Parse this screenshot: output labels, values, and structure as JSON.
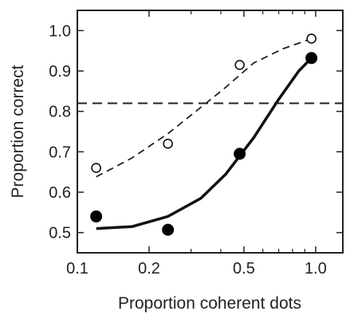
{
  "chart_data": {
    "type": "scatter",
    "title": "",
    "xlabel": "Proportion coherent dots",
    "ylabel": "Proportion correct",
    "xscale": "log",
    "xlim": [
      0.1,
      1.3
    ],
    "ylim": [
      0.45,
      1.05
    ],
    "grid": false,
    "legend": "none",
    "xticks": [
      0.1,
      0.2,
      0.5,
      1.0
    ],
    "xtick_labels": [
      "0.1",
      "0.2",
      "0.5",
      "1.0"
    ],
    "yticks": [
      0.5,
      0.6,
      0.7,
      0.8,
      0.9,
      1.0
    ],
    "ytick_labels": [
      "0.5",
      "0.6",
      "0.7",
      "0.8",
      "0.9",
      "1.0"
    ],
    "series": [
      {
        "style": "open-circles-dashed-fit",
        "x": [
          0.12,
          0.24,
          0.48,
          0.96
        ],
        "y": [
          0.66,
          0.72,
          0.915,
          0.98
        ],
        "fit": [
          [
            0.12,
            0.638
          ],
          [
            0.17,
            0.685
          ],
          [
            0.24,
            0.745
          ],
          [
            0.33,
            0.81
          ],
          [
            0.42,
            0.86
          ],
          [
            0.55,
            0.92
          ],
          [
            0.73,
            0.955
          ],
          [
            0.96,
            0.98
          ]
        ]
      },
      {
        "style": "filled-circles-solid-fit",
        "x": [
          0.12,
          0.24,
          0.48,
          0.96
        ],
        "y": [
          0.54,
          0.507,
          0.695,
          0.932
        ],
        "fit": [
          [
            0.12,
            0.51
          ],
          [
            0.17,
            0.515
          ],
          [
            0.24,
            0.54
          ],
          [
            0.33,
            0.585
          ],
          [
            0.42,
            0.645
          ],
          [
            0.55,
            0.735
          ],
          [
            0.7,
            0.83
          ],
          [
            0.85,
            0.9
          ],
          [
            0.96,
            0.932
          ]
        ]
      }
    ],
    "reference_line": {
      "y": 0.82,
      "style": "dashed"
    }
  }
}
